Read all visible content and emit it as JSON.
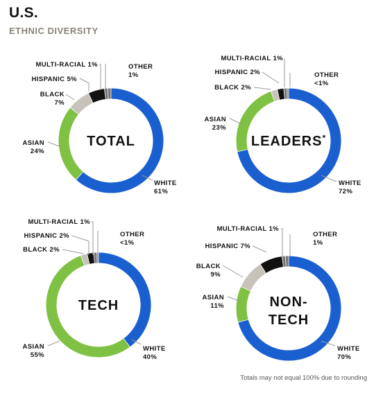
{
  "header": {
    "title": "U.S.",
    "subtitle": "ETHNIC DIVERSITY"
  },
  "footnote": "Totals may not equal 100% due to rounding",
  "colors": {
    "white": "#1a5fd0",
    "asian": "#7fc142",
    "black": "#c7c2ba",
    "hispanic": "#111111",
    "multiracial": "#777777",
    "other": "#777777",
    "gap": "#ffffff"
  },
  "chart_data": [
    {
      "type": "pie",
      "title": "TOTAL",
      "slices": [
        {
          "name": "WHITE",
          "value": 61,
          "label": "61%"
        },
        {
          "name": "ASIAN",
          "value": 24,
          "label": "24%"
        },
        {
          "name": "BLACK",
          "value": 7,
          "label": "7%"
        },
        {
          "name": "HISPANIC",
          "value": 5,
          "label": "5%"
        },
        {
          "name": "MULTI-RACIAL",
          "value": 1,
          "label": "1%"
        },
        {
          "name": "OTHER",
          "value": 1,
          "label": "1%"
        }
      ]
    },
    {
      "type": "pie",
      "title": "LEADERS",
      "title_mark": "*",
      "slices": [
        {
          "name": "WHITE",
          "value": 72,
          "label": "72%"
        },
        {
          "name": "ASIAN",
          "value": 23,
          "label": "23%"
        },
        {
          "name": "BLACK",
          "value": 2,
          "label": "2%"
        },
        {
          "name": "HISPANIC",
          "value": 2,
          "label": "2%"
        },
        {
          "name": "MULTI-RACIAL",
          "value": 1,
          "label": "1%"
        },
        {
          "name": "OTHER",
          "value": 0.5,
          "label": "<1%"
        }
      ]
    },
    {
      "type": "pie",
      "title": "TECH",
      "slices": [
        {
          "name": "WHITE",
          "value": 40,
          "label": "40%"
        },
        {
          "name": "ASIAN",
          "value": 55,
          "label": "55%"
        },
        {
          "name": "BLACK",
          "value": 2,
          "label": "2%"
        },
        {
          "name": "HISPANIC",
          "value": 2,
          "label": "2%"
        },
        {
          "name": "MULTI-RACIAL",
          "value": 1,
          "label": "1%"
        },
        {
          "name": "OTHER",
          "value": 0.5,
          "label": "<1%"
        }
      ]
    },
    {
      "type": "pie",
      "title": [
        "NON-",
        "TECH"
      ],
      "slices": [
        {
          "name": "WHITE",
          "value": 70,
          "label": "70%"
        },
        {
          "name": "ASIAN",
          "value": 11,
          "label": "11%"
        },
        {
          "name": "BLACK",
          "value": 9,
          "label": "9%"
        },
        {
          "name": "HISPANIC",
          "value": 7,
          "label": "7%"
        },
        {
          "name": "MULTI-RACIAL",
          "value": 1,
          "label": "1%"
        },
        {
          "name": "OTHER",
          "value": 1,
          "label": "1%"
        }
      ]
    }
  ]
}
